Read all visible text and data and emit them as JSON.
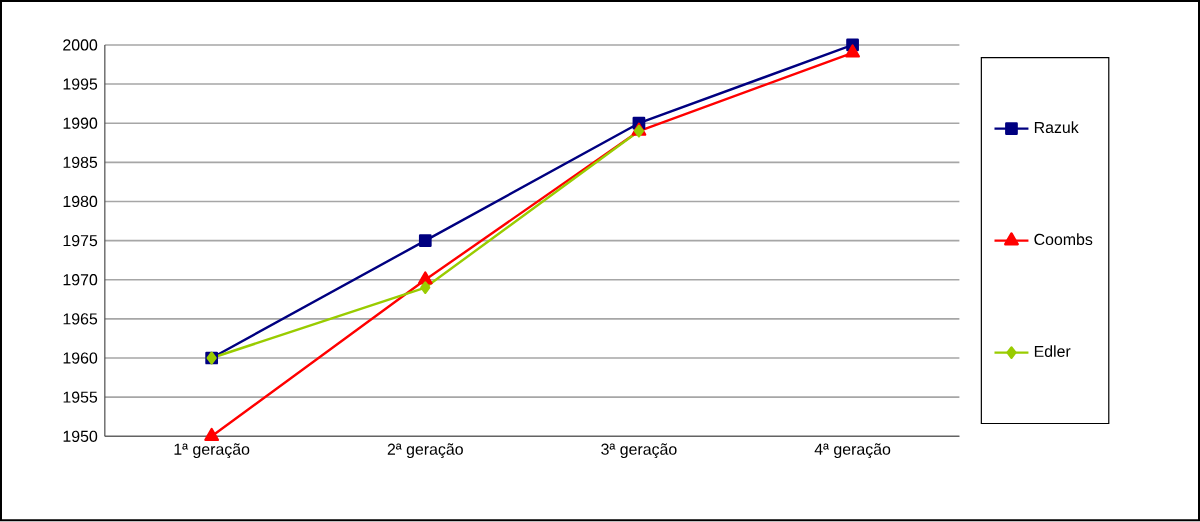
{
  "chart_data": {
    "type": "line",
    "categories": [
      "1ª geração",
      "2ª geração",
      "3ª geração",
      "4ª geração"
    ],
    "series": [
      {
        "name": "Razuk",
        "color": "#000080",
        "marker": "square",
        "values": [
          1960,
          1975,
          1990,
          2000
        ]
      },
      {
        "name": "Coombs",
        "color": "#ff0000",
        "marker": "triangle",
        "values": [
          1950,
          1970,
          1989,
          1999
        ]
      },
      {
        "name": "Edler",
        "color": "#99cc00",
        "marker": "diamond",
        "values": [
          1960,
          1969,
          1989,
          null
        ]
      }
    ],
    "ylim": [
      1950,
      2000
    ],
    "yticks": [
      1950,
      1955,
      1960,
      1965,
      1970,
      1975,
      1980,
      1985,
      1990,
      1995,
      2000
    ],
    "grid": "y",
    "legend": "right",
    "line_style": "solid"
  }
}
